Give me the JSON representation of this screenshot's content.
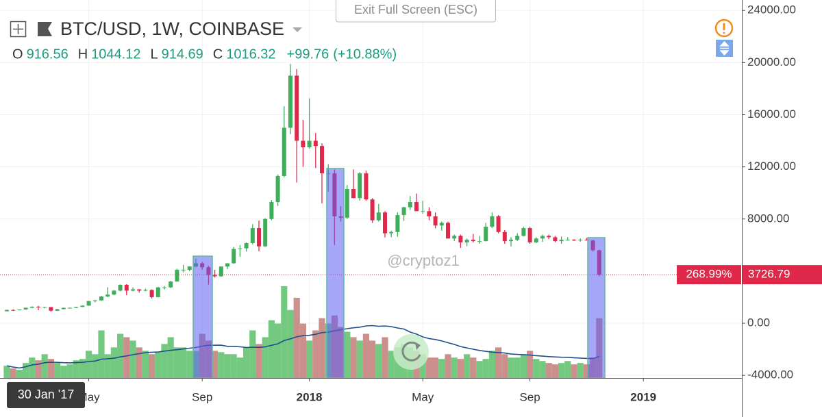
{
  "ui": {
    "exit_fullscreen": "Exit Full Screen (ESC)"
  },
  "chart_data": {
    "type": "candlestick",
    "title": "BTC/USD, 1W, COINBASE",
    "watermark": "@cryptoz1",
    "crosshair_label": "30 Jan '17",
    "ohlc_labels": [
      "O",
      "H",
      "L",
      "C"
    ],
    "change": {
      "value": 99.76,
      "label": "+99.76"
    },
    "change_percent": {
      "value": 10.88,
      "label": "(+10.88%)"
    },
    "last_price": 3726.79,
    "last_percent": {
      "value": 268.99,
      "label": "268.99%"
    },
    "up_color": "#3fae5b",
    "down_color": "#e0294a",
    "volume_up_color": "#5cbf6a",
    "volume_down_color": "#c27b78",
    "ma_color": "#1f4e8c",
    "ylim": [
      -4200,
      24800
    ],
    "yticks": [
      {
        "value": -4000,
        "label": "-4000.00"
      },
      {
        "value": 0,
        "label": "0.00"
      },
      {
        "value": 8000,
        "label": "8000.00"
      },
      {
        "value": 12000,
        "label": "12000.00"
      },
      {
        "value": 16000,
        "label": "16000.00"
      },
      {
        "value": 20000,
        "label": "20000.00"
      },
      {
        "value": 24000,
        "label": "24000.00"
      }
    ],
    "grid": true,
    "categories": [
      null,
      null,
      null,
      null,
      null,
      null,
      null,
      null,
      null,
      null,
      null,
      null,
      null,
      "May",
      null,
      null,
      null,
      null,
      null,
      null,
      null,
      null,
      null,
      null,
      null,
      null,
      null,
      null,
      null,
      null,
      null,
      "Sep",
      null,
      null,
      null,
      null,
      null,
      null,
      null,
      null,
      null,
      null,
      null,
      null,
      null,
      null,
      null,
      null,
      "2018",
      null,
      null,
      null,
      null,
      null,
      null,
      null,
      null,
      null,
      null,
      null,
      null,
      null,
      null,
      null,
      null,
      null,
      "May",
      null,
      null,
      null,
      null,
      null,
      null,
      null,
      null,
      null,
      null,
      null,
      null,
      null,
      null,
      null,
      null,
      "Sep",
      null,
      null,
      null,
      null,
      null,
      null,
      null,
      null,
      null,
      null,
      null,
      null,
      null,
      null,
      null,
      null,
      null,
      "2019"
    ],
    "open": [
      916.56,
      1016,
      996,
      1054,
      1190,
      1270,
      1230,
      1240,
      960,
      1080,
      1180,
      1180,
      1250,
      1350,
      1700,
      1750,
      2050,
      2200,
      2500,
      2950,
      2500,
      2600,
      2500,
      2550,
      2000,
      2750,
      2750,
      3200,
      4100,
      4100,
      4350,
      4600,
      4300,
      3700,
      3600,
      4350,
      4600,
      5700,
      5750,
      6150,
      7300,
      5900,
      8000,
      9300,
      11300,
      15000,
      19000,
      14000,
      13500,
      14000,
      13600,
      11500,
      11500,
      8200,
      8100,
      10300,
      9600,
      11500,
      9500,
      7900,
      8500,
      6900,
      7000,
      8300,
      8900,
      9300,
      8600,
      8600,
      8200,
      7500,
      7700,
      6500,
      6700,
      6200,
      6400,
      6300,
      6300,
      7400,
      8200,
      7000,
      6300,
      6400,
      6700,
      7300,
      6200,
      6500,
      6700,
      6600,
      6300,
      6400,
      6400,
      6350,
      6400,
      6350,
      5600,
      null,
      null,
      null,
      null,
      null,
      null,
      null
    ],
    "high": [
      1044.12,
      1070,
      1060,
      1200,
      1290,
      1330,
      1260,
      1250,
      1100,
      1200,
      1220,
      1260,
      1370,
      1700,
      1800,
      2100,
      2760,
      2550,
      2980,
      3000,
      2750,
      2620,
      2650,
      2600,
      2800,
      2850,
      3250,
      4180,
      4480,
      4370,
      4980,
      4700,
      4400,
      4100,
      4350,
      4600,
      5850,
      6000,
      6200,
      7600,
      7880,
      8060,
      9450,
      11400,
      16650,
      19890,
      19500,
      15600,
      17250,
      14600,
      13800,
      12200,
      11800,
      8980,
      10600,
      11800,
      11600,
      11700,
      9600,
      9150,
      8600,
      7100,
      8500,
      8930,
      9760,
      9950,
      9390,
      8900,
      8500,
      7800,
      7800,
      6800,
      6800,
      6500,
      6850,
      6700,
      7700,
      8500,
      8300,
      7150,
      6600,
      6900,
      7400,
      7400,
      6600,
      6800,
      6800,
      6700,
      6650,
      6600,
      6450,
      6500,
      6550,
      6400,
      5650,
      null,
      null,
      null,
      null,
      null,
      null,
      null
    ],
    "low": [
      914.69,
      940,
      980,
      1040,
      1150,
      1000,
      1140,
      890,
      930,
      1060,
      1150,
      1170,
      1240,
      1340,
      1610,
      1720,
      2000,
      2150,
      2450,
      2150,
      2450,
      2350,
      2450,
      1900,
      1980,
      2600,
      2700,
      3190,
      3900,
      3980,
      4300,
      4100,
      2970,
      3500,
      3560,
      4160,
      4560,
      5100,
      5500,
      6050,
      5530,
      5850,
      7900,
      9000,
      11200,
      14500,
      10800,
      12000,
      13400,
      11900,
      9200,
      10100,
      6000,
      7800,
      8000,
      9600,
      9400,
      9400,
      7700,
      7800,
      6580,
      6600,
      6640,
      7850,
      8700,
      8600,
      8400,
      7900,
      7280,
      7100,
      6500,
      6300,
      5780,
      5900,
      6200,
      6100,
      6280,
      7300,
      6900,
      6100,
      5880,
      6300,
      6650,
      6100,
      6150,
      6250,
      6450,
      6200,
      6100,
      6350,
      6300,
      6260,
      6350,
      5500,
      3600,
      null,
      null,
      null,
      null,
      null,
      null,
      null
    ],
    "close": [
      1016.32,
      996,
      1054,
      1190,
      1270,
      1230,
      1240,
      960,
      1080,
      1180,
      1180,
      1250,
      1350,
      1700,
      1750,
      2050,
      2200,
      2500,
      2950,
      2500,
      2600,
      2500,
      2550,
      2000,
      2750,
      2750,
      3200,
      4100,
      4100,
      4350,
      4600,
      4300,
      3700,
      3600,
      4350,
      4600,
      5700,
      5750,
      6150,
      7300,
      5900,
      8000,
      9300,
      11300,
      15000,
      19000,
      14000,
      13500,
      14000,
      13600,
      11500,
      11500,
      8200,
      8100,
      10300,
      9600,
      11500,
      9500,
      7900,
      8500,
      6900,
      7000,
      8300,
      8900,
      9300,
      8600,
      8600,
      8200,
      7500,
      7700,
      6500,
      6700,
      6200,
      6400,
      6300,
      6300,
      7400,
      8200,
      7000,
      6300,
      6400,
      6700,
      7300,
      6200,
      6500,
      6700,
      6600,
      6300,
      6400,
      6400,
      6350,
      6400,
      6350,
      5600,
      3726.79,
      null,
      null,
      null,
      null,
      null,
      null,
      null
    ],
    "volume": [
      18,
      14,
      12,
      22,
      30,
      26,
      35,
      28,
      22,
      18,
      20,
      26,
      28,
      40,
      35,
      70,
      35,
      45,
      65,
      60,
      55,
      45,
      40,
      35,
      38,
      50,
      60,
      45,
      45,
      40,
      40,
      65,
      55,
      40,
      38,
      35,
      35,
      30,
      45,
      70,
      50,
      60,
      85,
      80,
      135,
      100,
      118,
      80,
      55,
      70,
      88,
      80,
      92,
      75,
      68,
      60,
      55,
      65,
      55,
      50,
      60,
      40,
      45,
      50,
      45,
      40,
      35,
      30,
      30,
      28,
      35,
      30,
      28,
      35,
      30,
      25,
      28,
      40,
      45,
      35,
      30,
      30,
      35,
      40,
      28,
      25,
      22,
      20,
      22,
      25,
      20,
      22,
      20,
      30,
      88,
      null,
      null,
      null,
      null,
      null,
      null,
      null
    ]
  }
}
